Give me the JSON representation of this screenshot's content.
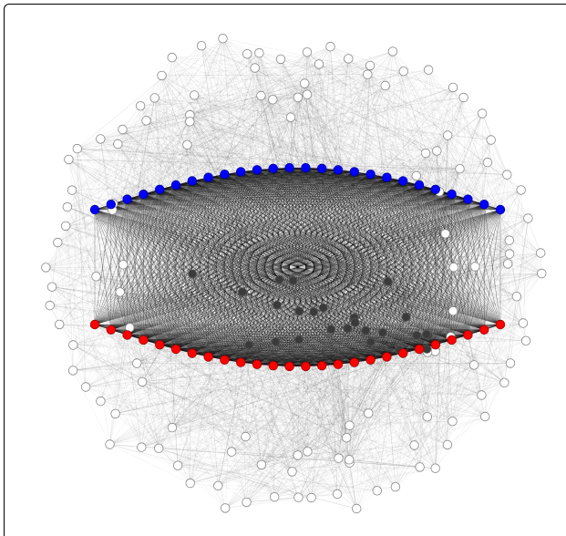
{
  "figure": {
    "type": "network-graph",
    "groups": [
      {
        "id": "blue",
        "color": "#0000ff",
        "count": 26,
        "arc": "upper"
      },
      {
        "id": "red",
        "color": "#ff0000",
        "count": 26,
        "arc": "lower"
      }
    ],
    "background_nodes": {
      "color": "#ffffff",
      "stroke": "#888888",
      "count": 150
    },
    "edge_color": "#000000"
  }
}
